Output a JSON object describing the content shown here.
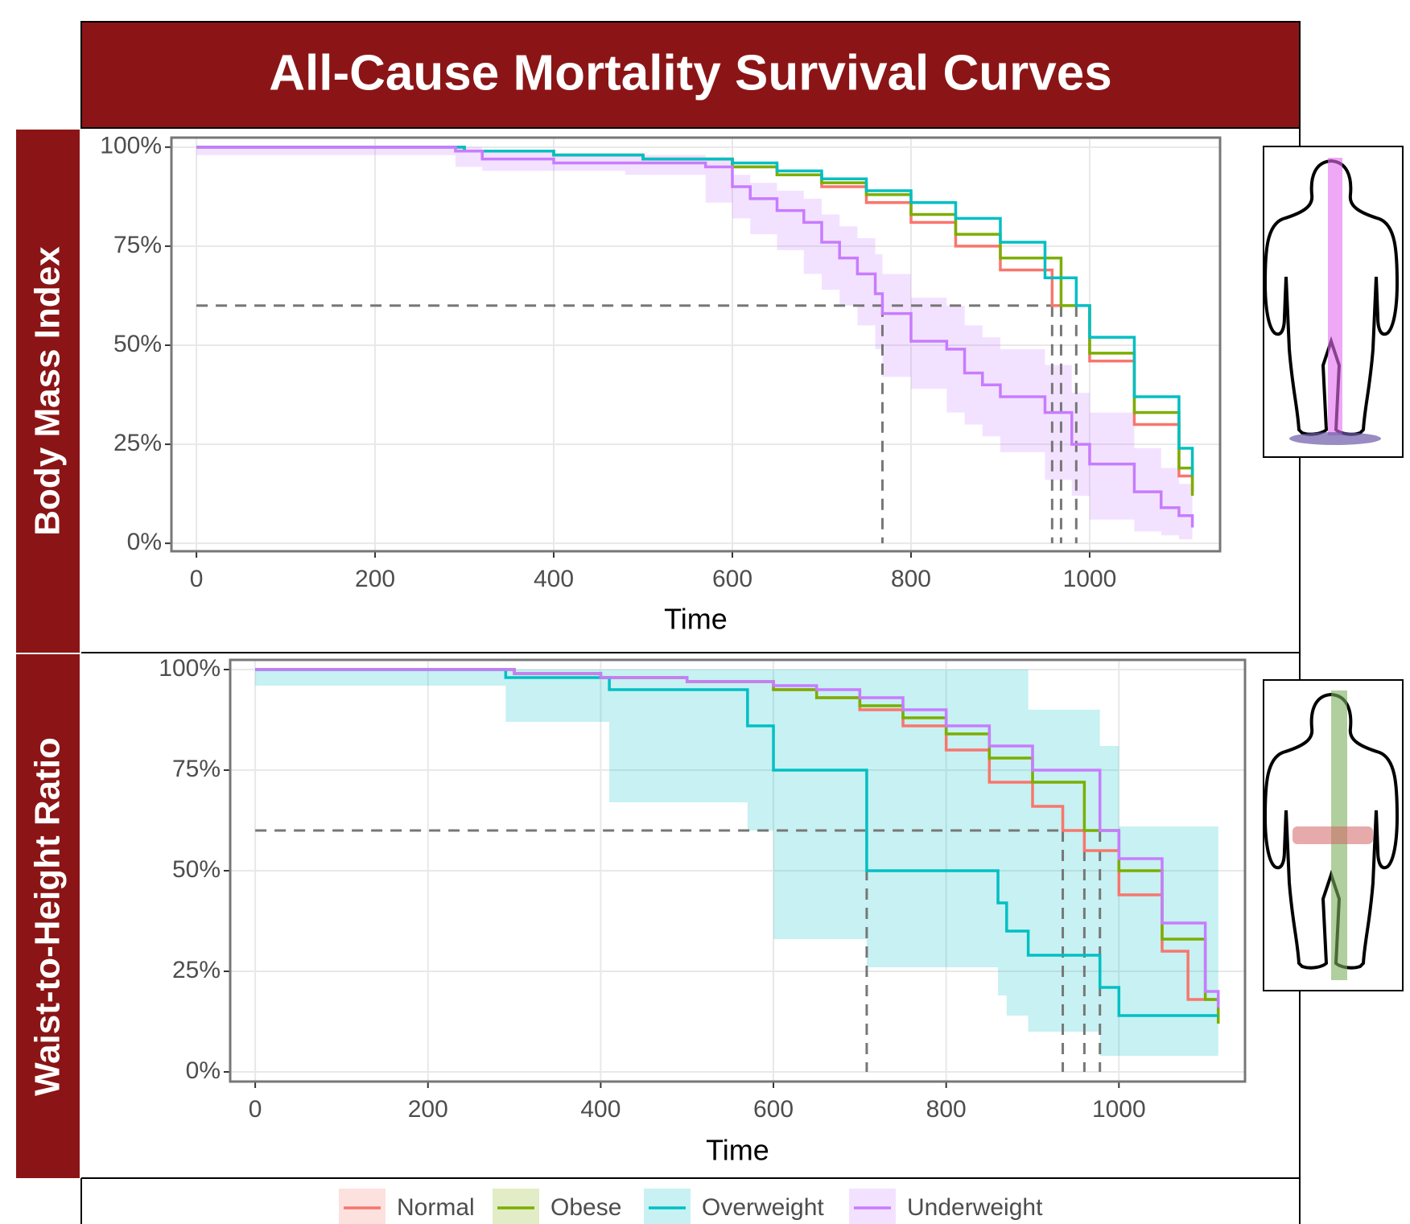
{
  "title": "All-Cause Mortality Survival Curves",
  "chart_data": [
    {
      "type": "step",
      "panel_label": "Body Mass Index",
      "x_label": "Time",
      "xlim": [
        -28,
        1146
      ],
      "ylim": [
        -2,
        102.4
      ],
      "xticks": [
        0,
        200,
        400,
        600,
        800,
        1000
      ],
      "yticks": [
        {
          "value": 0,
          "label": "0%"
        },
        {
          "value": 25,
          "label": "25%"
        },
        {
          "value": 50,
          "label": "50%"
        },
        {
          "value": 75,
          "label": "75%"
        },
        {
          "value": 100,
          "label": "100%"
        }
      ],
      "grid": true,
      "ref_y": 60,
      "ref_x": [
        768,
        958,
        968,
        985
      ],
      "series": [
        {
          "name": "Normal",
          "color": "#f8766d",
          "x": [
            0,
            300,
            400,
            500,
            600,
            650,
            700,
            750,
            800,
            850,
            900,
            958,
            1000,
            1050,
            1100,
            1115
          ],
          "y": [
            100,
            99,
            98,
            97,
            95,
            93,
            90,
            86,
            81,
            75,
            69,
            60,
            46,
            30,
            17,
            13
          ]
        },
        {
          "name": "Obese",
          "color": "#7cae00",
          "x": [
            0,
            300,
            400,
            500,
            600,
            650,
            700,
            750,
            800,
            850,
            900,
            968,
            1000,
            1050,
            1100,
            1115
          ],
          "y": [
            100,
            99,
            98,
            97,
            95,
            93,
            91,
            88,
            83,
            78,
            72,
            60,
            48,
            33,
            19,
            12
          ]
        },
        {
          "name": "Overweight",
          "color": "#00bfc4",
          "x": [
            0,
            300,
            400,
            500,
            600,
            650,
            700,
            750,
            800,
            850,
            900,
            950,
            985,
            1000,
            1050,
            1100,
            1115
          ],
          "y": [
            100,
            99,
            98,
            97,
            96,
            94,
            92,
            89,
            86,
            82,
            76,
            67,
            60,
            52,
            37,
            24,
            17
          ]
        },
        {
          "name": "Underweight",
          "color": "#c77cff",
          "x": [
            0,
            290,
            320,
            400,
            480,
            570,
            600,
            620,
            650,
            680,
            700,
            720,
            740,
            760,
            768,
            800,
            840,
            860,
            880,
            900,
            950,
            980,
            1000,
            1050,
            1080,
            1100,
            1115
          ],
          "y": [
            100,
            99,
            97,
            96,
            96,
            95,
            90,
            87,
            84,
            81,
            76,
            72,
            68,
            63,
            58,
            51,
            49,
            43,
            40,
            37,
            33,
            25,
            20,
            13,
            9,
            7,
            4
          ],
          "ci_upper": [
            100,
            100,
            99,
            98,
            98,
            97,
            93,
            91,
            89,
            87,
            83,
            80,
            77,
            73,
            68,
            62,
            60,
            55,
            52,
            49,
            45,
            38,
            33,
            24,
            19,
            15,
            10
          ],
          "ci_lower": [
            100,
            98,
            95,
            94,
            94,
            93,
            86,
            82,
            78,
            74,
            68,
            64,
            60,
            55,
            49,
            42,
            39,
            33,
            30,
            27,
            23,
            16,
            12,
            6,
            3,
            2,
            1
          ]
        }
      ]
    },
    {
      "type": "step",
      "panel_label": "Waist-to-Height Ratio",
      "x_label": "Time",
      "xlim": [
        -29,
        1146
      ],
      "ylim": [
        -2.4,
        102.4
      ],
      "xticks": [
        0,
        200,
        400,
        600,
        800,
        1000
      ],
      "yticks": [
        {
          "value": 0,
          "label": "0%"
        },
        {
          "value": 25,
          "label": "25%"
        },
        {
          "value": 50,
          "label": "50%"
        },
        {
          "value": 75,
          "label": "75%"
        },
        {
          "value": 100,
          "label": "100%"
        }
      ],
      "grid": true,
      "ref_y": 60,
      "ref_x": [
        708,
        935,
        960,
        978
      ],
      "series": [
        {
          "name": "Normal",
          "color": "#f8766d",
          "x": [
            0,
            300,
            400,
            500,
            600,
            650,
            700,
            750,
            800,
            850,
            900,
            935,
            960,
            1000,
            1050,
            1080,
            1115
          ],
          "y": [
            100,
            99,
            98,
            97,
            95,
            93,
            90,
            86,
            80,
            72,
            66,
            60,
            55,
            44,
            30,
            18,
            15
          ]
        },
        {
          "name": "Obese",
          "color": "#7cae00",
          "x": [
            0,
            300,
            400,
            500,
            600,
            650,
            700,
            750,
            800,
            850,
            900,
            960,
            1000,
            1050,
            1100,
            1115
          ],
          "y": [
            100,
            99,
            98,
            97,
            95,
            93,
            91,
            88,
            84,
            78,
            72,
            60,
            50,
            33,
            18,
            12
          ]
        },
        {
          "name": "Overweight",
          "color": "#00bfc4",
          "x": [
            0,
            290,
            410,
            570,
            600,
            708,
            860,
            870,
            895,
            978,
            1000,
            1115
          ],
          "y": [
            100,
            98,
            95,
            86,
            75,
            50,
            42,
            35,
            29,
            21,
            14,
            14
          ],
          "ci_upper": [
            100,
            100,
            100,
            100,
            100,
            100,
            100,
            100,
            90,
            81,
            61,
            61
          ],
          "ci_lower": [
            100,
            96,
            87,
            67,
            60,
            33,
            26,
            19,
            14,
            10,
            4,
            4
          ]
        },
        {
          "name": "Underweight",
          "color": "#c77cff",
          "x": [
            0,
            300,
            400,
            500,
            600,
            650,
            700,
            750,
            800,
            850,
            900,
            978,
            1000,
            1050,
            1100,
            1115
          ],
          "y": [
            100,
            99,
            98,
            97,
            96,
            95,
            93,
            90,
            86,
            81,
            75,
            60,
            53,
            37,
            20,
            16
          ]
        }
      ]
    }
  ]
}
